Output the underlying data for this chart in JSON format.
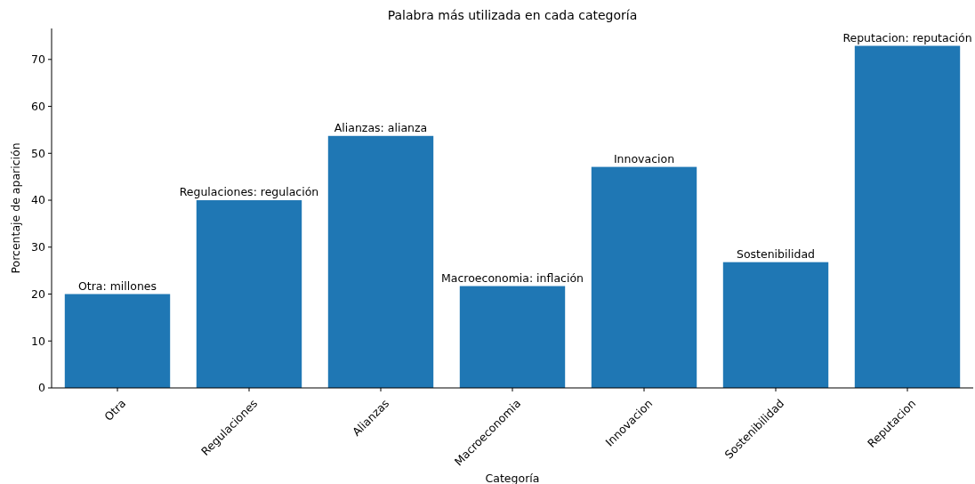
{
  "chart_data": {
    "type": "bar",
    "title": "Palabra más utilizada en cada categoría",
    "xlabel": "Categoría",
    "ylabel": "Porcentaje de aparición",
    "categories": [
      "Otra",
      "Regulaciones",
      "Alianzas",
      "Macroeconomia",
      "Innovacion",
      "Sostenibilidad",
      "Reputacion"
    ],
    "values": [
      20,
      40,
      53.7,
      21.7,
      47.1,
      26.8,
      72.9
    ],
    "color": "#1f77b4",
    "ylim": [
      0,
      76.6
    ],
    "yticks": [
      0,
      10,
      20,
      30,
      40,
      50,
      60,
      70
    ],
    "grid": false,
    "annotations": [
      {
        "text": "Otra: millones",
        "x": "Otra",
        "y": 20
      },
      {
        "text": "Regulaciones: regulación",
        "x": "Regulaciones",
        "y": 40
      },
      {
        "text": "Alianzas: alianza",
        "x": "Alianzas",
        "y": 53.7
      },
      {
        "text": "Macroeconomia: inflación",
        "x": "Macroeconomia",
        "y": 21.7
      },
      {
        "text": "Innovacion",
        "x": "Innovacion",
        "y": 47.1
      },
      {
        "text": "Sostenibilidad",
        "x": "Sostenibilidad",
        "y": 26.8
      },
      {
        "text": "Reputacion: reputación",
        "x": "Reputacion",
        "y": 72.9
      }
    ]
  }
}
